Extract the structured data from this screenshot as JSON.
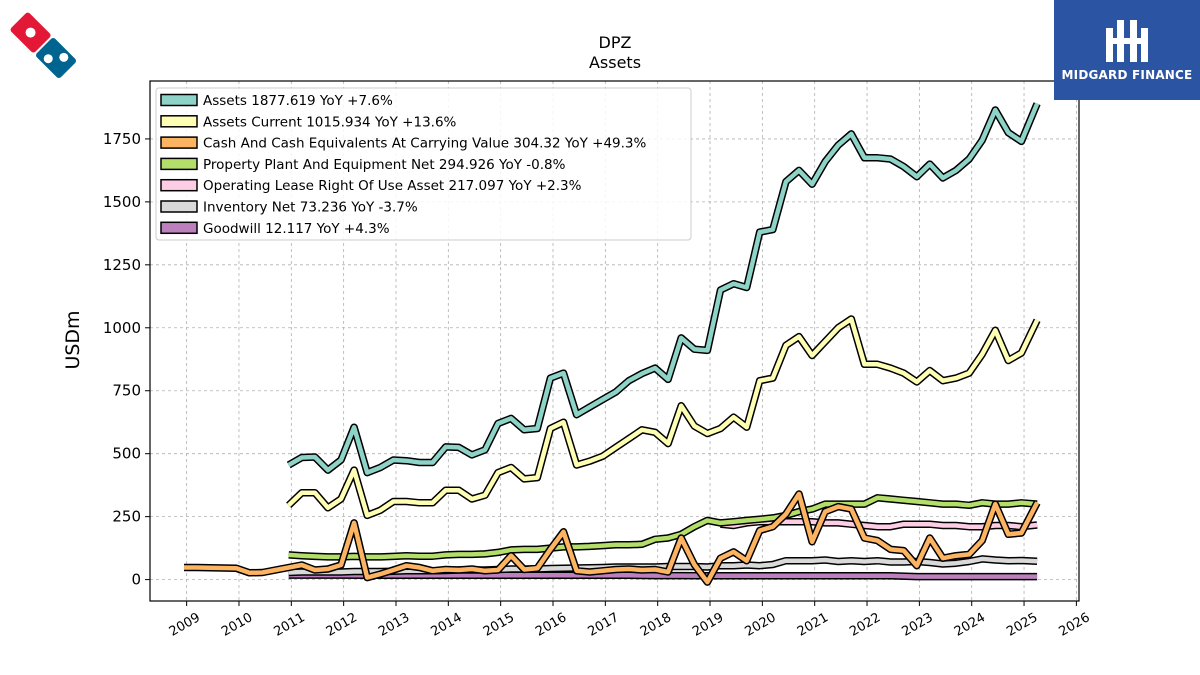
{
  "brand": {
    "text": "MIDGARD FINANCE",
    "colors": {
      "box": "#2b55a3",
      "glyph": "#ffffff"
    },
    "logo_icon": "domino-logo-icon",
    "logo_colors": {
      "red": "#e31837",
      "blue": "#006491"
    }
  },
  "chart_data": {
    "type": "line",
    "title": "DPZ",
    "subtitle": "Assets",
    "ylabel": "USDm",
    "xlabel": "",
    "xlim": [
      2008.3,
      2026.05
    ],
    "ylim": [
      -85,
      1980
    ],
    "grid": true,
    "legend_position": "top-left",
    "x_ticks": [
      2009,
      2010,
      2011,
      2012,
      2013,
      2014,
      2015,
      2016,
      2017,
      2018,
      2019,
      2020,
      2021,
      2022,
      2023,
      2024,
      2025,
      2026
    ],
    "y_ticks": [
      0,
      250,
      500,
      750,
      1000,
      1250,
      1500,
      1750
    ],
    "series": [
      {
        "name": "Assets",
        "legend": "Assets  1877.619 YoY +7.6%",
        "color": "#8dd3c7",
        "x": [
          2010.95,
          2011.2,
          2011.45,
          2011.7,
          2011.95,
          2012.2,
          2012.45,
          2012.7,
          2012.95,
          2013.2,
          2013.45,
          2013.7,
          2013.95,
          2014.2,
          2014.45,
          2014.7,
          2014.95,
          2015.2,
          2015.45,
          2015.7,
          2015.95,
          2016.2,
          2016.45,
          2016.7,
          2016.95,
          2017.2,
          2017.45,
          2017.7,
          2017.95,
          2018.2,
          2018.45,
          2018.7,
          2018.95,
          2019.2,
          2019.45,
          2019.7,
          2019.95,
          2020.2,
          2020.45,
          2020.7,
          2020.95,
          2021.2,
          2021.45,
          2021.7,
          2021.95,
          2022.2,
          2022.45,
          2022.7,
          2022.95,
          2023.2,
          2023.45,
          2023.7,
          2023.95,
          2024.2,
          2024.45,
          2024.7,
          2024.95,
          2025.25
        ],
        "values": [
          455,
          485,
          487,
          435,
          475,
          605,
          425,
          445,
          475,
          472,
          465,
          465,
          527,
          525,
          495,
          515,
          620,
          640,
          595,
          600,
          800,
          820,
          655,
          685,
          715,
          745,
          790,
          818,
          840,
          795,
          960,
          915,
          910,
          1150,
          1175,
          1160,
          1380,
          1390,
          1580,
          1625,
          1570,
          1660,
          1725,
          1770,
          1675,
          1675,
          1670,
          1640,
          1600,
          1650,
          1595,
          1625,
          1670,
          1745,
          1865,
          1775,
          1740,
          1890
        ]
      },
      {
        "name": "Assets Current",
        "legend": "Assets Current  1015.934 YoY +13.6%",
        "color": "#ffffb3",
        "x": [
          2010.95,
          2011.2,
          2011.45,
          2011.7,
          2011.95,
          2012.2,
          2012.45,
          2012.7,
          2012.95,
          2013.2,
          2013.45,
          2013.7,
          2013.95,
          2014.2,
          2014.45,
          2014.7,
          2014.95,
          2015.2,
          2015.45,
          2015.7,
          2015.95,
          2016.2,
          2016.45,
          2016.7,
          2016.95,
          2017.2,
          2017.45,
          2017.7,
          2017.95,
          2018.2,
          2018.45,
          2018.7,
          2018.95,
          2019.2,
          2019.45,
          2019.7,
          2019.95,
          2020.2,
          2020.45,
          2020.7,
          2020.95,
          2021.2,
          2021.45,
          2021.7,
          2021.95,
          2022.2,
          2022.45,
          2022.7,
          2022.95,
          2023.2,
          2023.45,
          2023.7,
          2023.95,
          2024.2,
          2024.45,
          2024.7,
          2024.95,
          2025.25
        ],
        "values": [
          295,
          345,
          345,
          285,
          320,
          435,
          255,
          275,
          310,
          310,
          305,
          305,
          355,
          355,
          320,
          335,
          425,
          445,
          400,
          405,
          600,
          625,
          455,
          470,
          490,
          525,
          560,
          595,
          585,
          540,
          690,
          610,
          580,
          600,
          645,
          605,
          790,
          800,
          930,
          965,
          890,
          945,
          1000,
          1035,
          855,
          855,
          840,
          820,
          785,
          830,
          790,
          800,
          820,
          895,
          990,
          870,
          900,
          1030
        ]
      },
      {
        "name": "Cash And Cash Equivalents At Carrying Value",
        "legend": "Cash And Cash Equivalents At Carrying Value  304.32 YoY +49.3%",
        "color": "#fdb462",
        "x": [
          2008.95,
          2009.2,
          2009.45,
          2009.7,
          2009.95,
          2010.2,
          2010.45,
          2010.7,
          2010.95,
          2011.2,
          2011.45,
          2011.7,
          2011.95,
          2012.2,
          2012.45,
          2012.7,
          2012.95,
          2013.2,
          2013.45,
          2013.7,
          2013.95,
          2014.2,
          2014.45,
          2014.7,
          2014.95,
          2015.2,
          2015.45,
          2015.7,
          2015.95,
          2016.2,
          2016.45,
          2016.7,
          2016.95,
          2017.2,
          2017.45,
          2017.7,
          2017.95,
          2018.2,
          2018.45,
          2018.7,
          2018.95,
          2019.2,
          2019.45,
          2019.7,
          2019.95,
          2020.2,
          2020.45,
          2020.7,
          2020.95,
          2021.2,
          2021.45,
          2021.7,
          2021.95,
          2022.2,
          2022.45,
          2022.7,
          2022.95,
          2023.2,
          2023.45,
          2023.7,
          2023.95,
          2024.2,
          2024.45,
          2024.7,
          2024.95,
          2025.25
        ],
        "values": [
          48,
          48,
          47,
          46,
          45,
          27,
          28,
          38,
          48,
          58,
          38,
          42,
          58,
          225,
          8,
          22,
          38,
          55,
          48,
          35,
          40,
          38,
          42,
          35,
          38,
          95,
          40,
          45,
          120,
          190,
          35,
          30,
          35,
          40,
          42,
          38,
          40,
          30,
          165,
          60,
          -10,
          85,
          110,
          75,
          195,
          210,
          260,
          340,
          150,
          270,
          290,
          280,
          165,
          155,
          120,
          115,
          55,
          165,
          85,
          95,
          100,
          155,
          300,
          180,
          185,
          305
        ]
      },
      {
        "name": "Property Plant And Equipment Net",
        "legend": "Property Plant And Equipment Net  294.926 YoY -0.8%",
        "color": "#b3de69",
        "x": [
          2010.95,
          2011.2,
          2011.45,
          2011.7,
          2011.95,
          2012.2,
          2012.45,
          2012.7,
          2012.95,
          2013.2,
          2013.45,
          2013.7,
          2013.95,
          2014.2,
          2014.45,
          2014.7,
          2014.95,
          2015.2,
          2015.45,
          2015.7,
          2015.95,
          2016.2,
          2016.45,
          2016.7,
          2016.95,
          2017.2,
          2017.45,
          2017.7,
          2017.95,
          2018.2,
          2018.45,
          2018.7,
          2018.95,
          2019.2,
          2019.45,
          2019.7,
          2019.95,
          2020.2,
          2020.45,
          2020.7,
          2020.95,
          2021.2,
          2021.45,
          2021.7,
          2021.95,
          2022.2,
          2022.45,
          2022.7,
          2022.95,
          2023.2,
          2023.45,
          2023.7,
          2023.95,
          2024.2,
          2024.45,
          2024.7,
          2024.95,
          2025.25
        ],
        "values": [
          98,
          95,
          92,
          90,
          90,
          92,
          90,
          90,
          92,
          95,
          93,
          93,
          98,
          100,
          100,
          102,
          108,
          118,
          120,
          120,
          125,
          130,
          130,
          132,
          135,
          138,
          138,
          140,
          160,
          165,
          180,
          210,
          235,
          225,
          230,
          235,
          240,
          245,
          255,
          270,
          280,
          300,
          300,
          300,
          300,
          325,
          320,
          315,
          310,
          305,
          300,
          300,
          295,
          305,
          300,
          300,
          305,
          300
        ]
      },
      {
        "name": "Operating Lease Right Of Use Asset",
        "legend": "Operating Lease Right Of Use Asset  217.097 YoY +2.3%",
        "color": "#fccde5",
        "x": [
          2019.2,
          2019.45,
          2019.7,
          2019.95,
          2020.2,
          2020.45,
          2020.7,
          2020.95,
          2021.2,
          2021.45,
          2021.7,
          2021.95,
          2022.2,
          2022.45,
          2022.7,
          2022.95,
          2023.2,
          2023.45,
          2023.7,
          2023.95,
          2024.2,
          2024.45,
          2024.7,
          2024.95,
          2025.25
        ],
        "values": [
          220,
          215,
          225,
          230,
          230,
          230,
          230,
          230,
          225,
          225,
          220,
          215,
          210,
          210,
          220,
          220,
          220,
          215,
          215,
          210,
          210,
          215,
          215,
          210,
          217
        ]
      },
      {
        "name": "Inventory Net",
        "legend": "Inventory Net  73.236 YoY -3.7%",
        "color": "#d9d9d9",
        "x": [
          2010.95,
          2011.2,
          2011.45,
          2011.7,
          2011.95,
          2012.2,
          2012.45,
          2012.7,
          2012.95,
          2013.2,
          2013.45,
          2013.7,
          2013.95,
          2014.2,
          2014.45,
          2014.7,
          2014.95,
          2015.2,
          2015.45,
          2015.7,
          2015.95,
          2016.2,
          2016.45,
          2016.7,
          2016.95,
          2017.2,
          2017.45,
          2017.7,
          2017.95,
          2018.2,
          2018.45,
          2018.7,
          2018.95,
          2019.2,
          2019.45,
          2019.7,
          2019.95,
          2020.2,
          2020.45,
          2020.7,
          2020.95,
          2021.2,
          2021.45,
          2021.7,
          2021.95,
          2022.2,
          2022.45,
          2022.7,
          2022.95,
          2023.2,
          2023.45,
          2023.7,
          2023.95,
          2024.2,
          2024.45,
          2024.7,
          2024.95,
          2025.25
        ],
        "values": [
          28,
          30,
          30,
          30,
          30,
          32,
          32,
          32,
          33,
          35,
          35,
          35,
          36,
          38,
          38,
          38,
          40,
          42,
          42,
          42,
          44,
          45,
          46,
          47,
          48,
          50,
          50,
          50,
          50,
          52,
          52,
          52,
          50,
          55,
          55,
          58,
          55,
          60,
          75,
          75,
          75,
          78,
          72,
          75,
          72,
          75,
          70,
          70,
          72,
          68,
          62,
          65,
          72,
          82,
          78,
          75,
          76,
          73
        ]
      },
      {
        "name": "Goodwill",
        "legend": "Goodwill  12.117 YoY +4.3%",
        "color": "#bc80bd",
        "x": [
          2010.95,
          2011.45,
          2011.95,
          2012.45,
          2012.95,
          2013.45,
          2013.95,
          2014.45,
          2014.95,
          2015.45,
          2015.95,
          2016.45,
          2016.95,
          2017.45,
          2017.95,
          2018.45,
          2018.95,
          2019.45,
          2019.95,
          2020.45,
          2020.95,
          2021.45,
          2021.95,
          2022.45,
          2022.95,
          2023.45,
          2023.95,
          2024.45,
          2024.95,
          2025.25
        ],
        "values": [
          18,
          18,
          18,
          17,
          17,
          17,
          17,
          17,
          17,
          17,
          17,
          17,
          17,
          17,
          16,
          16,
          15,
          15,
          15,
          15,
          15,
          15,
          15,
          15,
          12,
          12,
          12,
          12,
          12,
          12
        ]
      }
    ]
  }
}
